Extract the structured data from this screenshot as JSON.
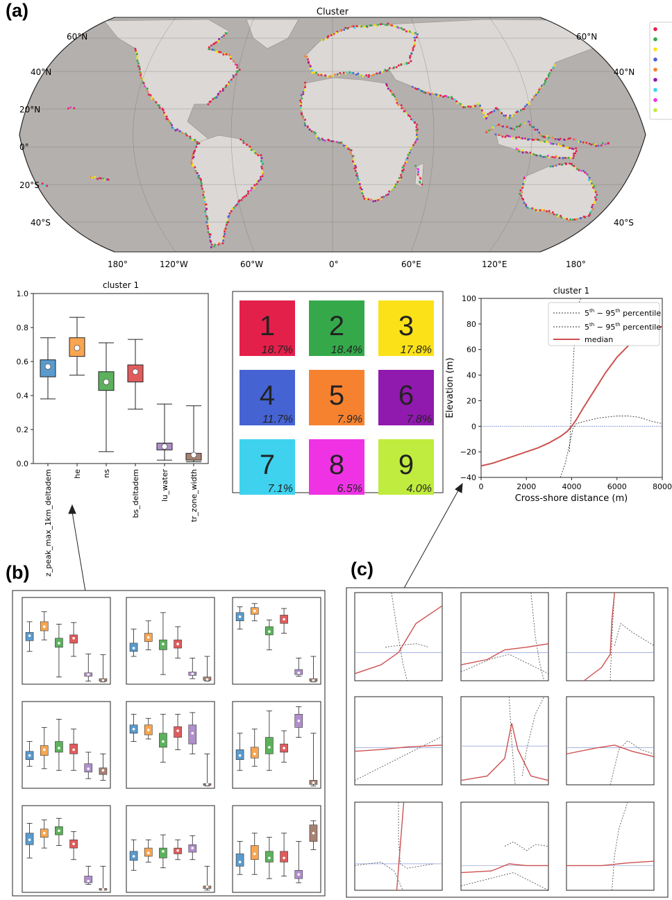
{
  "panels": {
    "a": "(a)",
    "b": "(b)",
    "c": "(c)"
  },
  "map": {
    "title": "Cluster",
    "lat_labels": [
      "60°N",
      "40°N",
      "20°N",
      "0°",
      "20°S",
      "40°S"
    ],
    "lon_labels": [
      "180°",
      "120°W",
      "60°W",
      "0°",
      "60°E",
      "120°E",
      "180°"
    ],
    "ocean_color": "#b4b0ad",
    "land_color": "#dbd8d5"
  },
  "clusters": [
    {
      "id": "1",
      "pct": "18.7%",
      "color": "#e2204a"
    },
    {
      "id": "2",
      "pct": "18.4%",
      "color": "#35a94a"
    },
    {
      "id": "3",
      "pct": "17.8%",
      "color": "#fbe118"
    },
    {
      "id": "4",
      "pct": "11.7%",
      "color": "#4563d2"
    },
    {
      "id": "5",
      "pct": "7.9%",
      "color": "#f68230"
    },
    {
      "id": "6",
      "pct": "7.8%",
      "color": "#9019ae"
    },
    {
      "id": "7",
      "pct": "7.1%",
      "color": "#3ed2ef"
    },
    {
      "id": "8",
      "pct": "6.5%",
      "color": "#ef33e4"
    },
    {
      "id": "9",
      "pct": "4.0%",
      "color": "#bfec3e"
    }
  ],
  "chart_data": [
    {
      "type": "box",
      "title": "cluster 1",
      "categories": [
        "z_peak_max_1km_deltadem",
        "he",
        "ns",
        "bs_deltadem",
        "lu_water",
        "tr_zone_width"
      ],
      "colors": [
        "#5a9bcd",
        "#f9a551",
        "#5cb15c",
        "#e05c5c",
        "#b08fcc",
        "#a78272"
      ],
      "ylim": [
        0,
        1.0
      ],
      "yticks": [
        "0.0",
        "0.2",
        "0.4",
        "0.6",
        "0.8",
        "1.0"
      ],
      "boxes": [
        {
          "min": 0.38,
          "q1": 0.51,
          "median": 0.57,
          "q3": 0.61,
          "max": 0.74
        },
        {
          "min": 0.52,
          "q1": 0.63,
          "median": 0.68,
          "q3": 0.74,
          "max": 0.86
        },
        {
          "min": 0.07,
          "q1": 0.43,
          "median": 0.48,
          "q3": 0.54,
          "max": 0.71
        },
        {
          "min": 0.32,
          "q1": 0.48,
          "median": 0.54,
          "q3": 0.58,
          "max": 0.73
        },
        {
          "min": 0.02,
          "q1": 0.08,
          "median": 0.1,
          "q3": 0.12,
          "max": 0.35
        },
        {
          "min": 0.01,
          "q1": 0.02,
          "median": 0.05,
          "q3": 0.06,
          "max": 0.34
        }
      ]
    },
    {
      "type": "line",
      "title": "cluster 1",
      "xlabel": "Cross-shore distance (m)",
      "ylabel": "Elevation (m)",
      "xlim": [
        0,
        8000
      ],
      "ylim": [
        -40,
        100
      ],
      "xticks": [
        "0",
        "2000",
        "4000",
        "6000",
        "8000"
      ],
      "yticks": [
        "−40",
        "−20",
        "0",
        "20",
        "40",
        "60",
        "80",
        "100"
      ],
      "legend": [
        "percentile",
        "percentile",
        "median"
      ],
      "legend_placement": "top-right",
      "series": [
        {
          "name": "median",
          "color": "#cd4f4f",
          "x": [
            0,
            500,
            1000,
            1500,
            2000,
            2500,
            3000,
            3500,
            3800,
            4000,
            4200,
            4500,
            5000,
            5500,
            6000,
            6500,
            7000,
            7500,
            8000
          ],
          "y": [
            -31,
            -29,
            -26,
            -23,
            -20,
            -17,
            -13,
            -8,
            -4,
            0,
            5,
            14,
            28,
            42,
            54,
            63,
            70,
            75,
            78
          ]
        },
        {
          "name": "5th percentile",
          "color": "#333333",
          "x": [
            3500,
            3700,
            3900,
            4050,
            4200,
            4600,
            5200,
            6000,
            6500,
            7000,
            7500,
            8000
          ],
          "y": [
            -40,
            -30,
            -15,
            -2,
            2,
            4,
            6.5,
            8,
            8,
            7,
            4,
            2
          ]
        },
        {
          "name": "95th percentile",
          "color": "#333333",
          "x": [
            3900,
            3950,
            4000,
            4050,
            4100,
            4200,
            4300,
            4400
          ],
          "y": [
            -20,
            0,
            20,
            40,
            60,
            80,
            95,
            100
          ]
        }
      ]
    }
  ]
}
